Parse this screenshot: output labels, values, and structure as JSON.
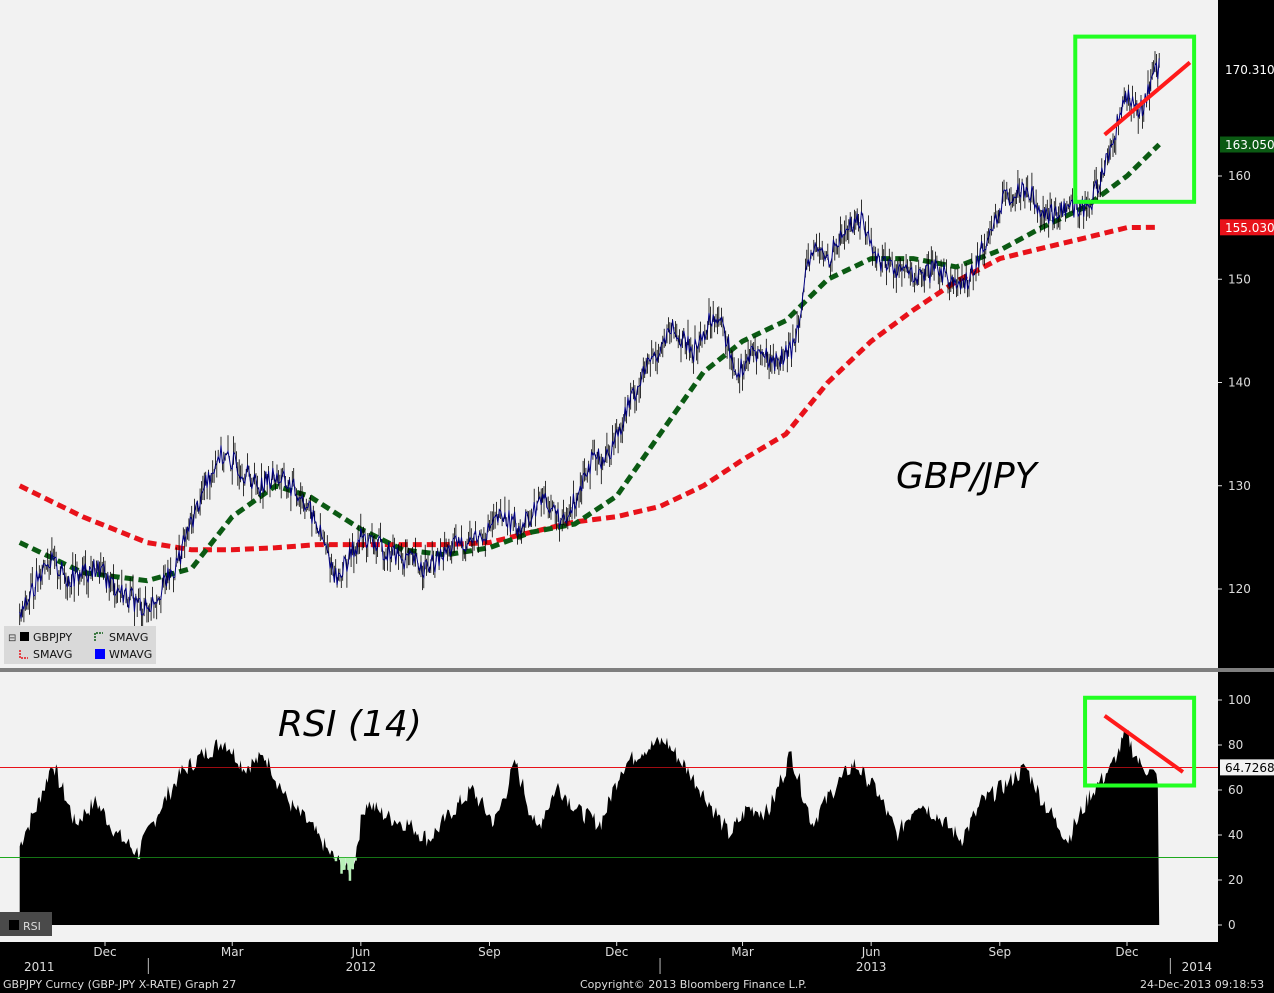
{
  "chart_data": [
    {
      "type": "line",
      "title": "GBP/JPY",
      "ylim": [
        112,
        176
      ],
      "yticks": [
        120,
        130,
        140,
        150,
        160
      ],
      "x_range": [
        "2011-10-01",
        "2013-12-24"
      ],
      "highlight_values": [
        {
          "value": "170.310",
          "value_num": 170.31,
          "color": "#000000",
          "text_color": "#ffffff"
        },
        {
          "value": "163.050",
          "value_num": 163.05,
          "color": "#0b5a13",
          "text_color": "#ffffff"
        },
        {
          "value": "155.030",
          "value_num": 155.03,
          "color": "#e8121a",
          "text_color": "#ffffff"
        }
      ],
      "legend": [
        {
          "label": "GBPJPY",
          "color": "#000000"
        },
        {
          "label": "SMAVG",
          "color": "#0b5a13"
        },
        {
          "label": "SMAVG",
          "color": "#e8121a"
        },
        {
          "label": "WMAVG",
          "color": "#0000ff"
        }
      ],
      "series": [
        {
          "name": "GBPJPY",
          "color": "#000080",
          "style": "solid",
          "x": [
            "2011-10-01",
            "2011-10-20",
            "2011-11-05",
            "2011-11-25",
            "2011-12-10",
            "2011-12-31",
            "2012-01-20",
            "2012-02-05",
            "2012-02-20",
            "2012-03-05",
            "2012-03-20",
            "2012-04-01",
            "2012-04-20",
            "2012-05-01",
            "2012-05-15",
            "2012-06-01",
            "2012-06-15",
            "2012-07-01",
            "2012-07-20",
            "2012-08-05",
            "2012-08-25",
            "2012-09-10",
            "2012-09-25",
            "2012-10-10",
            "2012-10-25",
            "2012-11-10",
            "2012-11-25",
            "2012-12-10",
            "2012-12-25",
            "2013-01-10",
            "2013-01-25",
            "2013-02-10",
            "2013-02-25",
            "2013-03-10",
            "2013-03-25",
            "2013-04-05",
            "2013-04-20",
            "2013-05-01",
            "2013-05-15",
            "2013-05-25",
            "2013-06-05",
            "2013-06-20",
            "2013-07-05",
            "2013-07-20",
            "2013-08-05",
            "2013-08-20",
            "2013-09-05",
            "2013-09-20",
            "2013-10-05",
            "2013-10-20",
            "2013-11-05",
            "2013-11-20",
            "2013-12-01",
            "2013-12-10",
            "2013-12-20",
            "2013-12-24"
          ],
          "values": [
            117,
            123,
            121,
            122,
            120,
            118,
            122,
            128,
            133,
            132,
            130,
            131,
            129,
            126,
            121,
            125,
            124,
            123,
            122,
            124,
            125,
            127,
            126,
            129,
            126,
            132,
            133,
            138,
            142,
            145,
            143,
            147,
            141,
            143,
            142,
            143,
            153,
            152,
            155,
            156,
            152,
            151,
            150,
            151,
            149,
            153,
            158,
            159,
            156,
            157,
            157,
            163,
            168,
            166,
            170,
            170.31
          ]
        },
        {
          "name": "SMAVG",
          "color": "#0b5a13",
          "style": "dashed",
          "x": [
            "2011-10-01",
            "2011-11-15",
            "2011-12-31",
            "2012-02-01",
            "2012-03-01",
            "2012-04-01",
            "2012-04-25",
            "2012-06-01",
            "2012-07-01",
            "2012-08-01",
            "2012-09-01",
            "2012-10-01",
            "2012-11-01",
            "2012-12-01",
            "2013-01-01",
            "2013-02-01",
            "2013-03-01",
            "2013-04-01",
            "2013-05-01",
            "2013-06-01",
            "2013-07-01",
            "2013-08-01",
            "2013-09-01",
            "2013-10-01",
            "2013-11-01",
            "2013-12-01",
            "2013-12-24"
          ],
          "values": [
            124.5,
            121.6,
            120.8,
            122.0,
            127.0,
            130.0,
            129.0,
            125.8,
            123.8,
            123.3,
            124.0,
            125.5,
            126.3,
            129.0,
            135.0,
            141.0,
            144.0,
            146.0,
            150.0,
            152.0,
            152.0,
            151.2,
            152.8,
            155.0,
            157.0,
            160.0,
            163.05
          ]
        },
        {
          "name": "SMAVG",
          "color": "#e8121a",
          "style": "dashed",
          "x": [
            "2011-10-01",
            "2011-11-15",
            "2011-12-31",
            "2012-02-01",
            "2012-03-01",
            "2012-04-01",
            "2012-05-01",
            "2012-06-01",
            "2012-07-01",
            "2012-08-01",
            "2012-09-01",
            "2012-10-01",
            "2012-11-01",
            "2012-12-01",
            "2013-01-01",
            "2013-02-01",
            "2013-03-01",
            "2013-04-01",
            "2013-05-01",
            "2013-06-01",
            "2013-07-01",
            "2013-08-01",
            "2013-09-01",
            "2013-10-01",
            "2013-11-01",
            "2013-12-01",
            "2013-12-24"
          ],
          "values": [
            130.0,
            127.0,
            124.5,
            123.8,
            123.8,
            124.0,
            124.3,
            124.3,
            124.3,
            124.3,
            124.5,
            125.5,
            126.5,
            127.0,
            128.0,
            130.0,
            132.5,
            135.0,
            140.0,
            144.0,
            147.0,
            149.8,
            152.0,
            153.0,
            154.0,
            155.0,
            155.03
          ]
        }
      ],
      "annotations": [
        {
          "type": "box",
          "x": [
            "2013-10-25",
            "2014-01-18"
          ],
          "y": [
            157.5,
            173.5
          ],
          "color": "#22ff22"
        },
        {
          "type": "trendline",
          "x": [
            "2013-11-15",
            "2014-01-15"
          ],
          "y": [
            164.0,
            171.0
          ],
          "color": "#ff1a1a"
        }
      ]
    },
    {
      "type": "area",
      "title": "RSI (14)",
      "ylim": [
        -5,
        105
      ],
      "yticks": [
        0,
        20,
        40,
        60,
        80,
        100
      ],
      "ylines": [
        {
          "value": 70,
          "color": "#e8121a"
        },
        {
          "value": 30,
          "color": "#1faa1f"
        }
      ],
      "current_value": "64.7268",
      "legend": [
        {
          "label": "RSI",
          "color": "#000000"
        }
      ],
      "series": [
        {
          "name": "RSI",
          "color": "#000000",
          "x": [
            "2011-10-01",
            "2011-10-15",
            "2011-10-25",
            "2011-11-10",
            "2011-11-25",
            "2011-12-10",
            "2011-12-25",
            "2012-01-10",
            "2012-01-25",
            "2012-02-10",
            "2012-02-25",
            "2012-03-10",
            "2012-03-25",
            "2012-04-10",
            "2012-04-25",
            "2012-05-10",
            "2012-05-25",
            "2012-06-05",
            "2012-06-20",
            "2012-07-05",
            "2012-07-20",
            "2012-08-05",
            "2012-08-20",
            "2012-09-05",
            "2012-09-20",
            "2012-10-05",
            "2012-10-20",
            "2012-11-05",
            "2012-11-20",
            "2012-12-05",
            "2012-12-20",
            "2013-01-05",
            "2013-01-20",
            "2013-02-05",
            "2013-02-20",
            "2013-03-05",
            "2013-03-20",
            "2013-04-05",
            "2013-04-20",
            "2013-05-05",
            "2013-05-20",
            "2013-06-05",
            "2013-06-20",
            "2013-07-05",
            "2013-07-20",
            "2013-08-05",
            "2013-08-20",
            "2013-09-05",
            "2013-09-20",
            "2013-10-05",
            "2013-10-20",
            "2013-11-05",
            "2013-11-20",
            "2013-12-01",
            "2013-12-10",
            "2013-12-24"
          ],
          "values": [
            35,
            55,
            72,
            45,
            55,
            40,
            32,
            52,
            68,
            76,
            82,
            70,
            75,
            55,
            45,
            32,
            22,
            55,
            48,
            45,
            38,
            50,
            60,
            45,
            72,
            42,
            62,
            50,
            45,
            70,
            78,
            82,
            70,
            55,
            40,
            52,
            50,
            76,
            45,
            60,
            72,
            60,
            40,
            55,
            48,
            38,
            55,
            62,
            70,
            52,
            38,
            58,
            70,
            85,
            72,
            65
          ]
        }
      ],
      "annotations": [
        {
          "type": "box",
          "x": [
            "2013-11-01",
            "2014-01-18"
          ],
          "y": [
            62,
            101
          ],
          "color": "#22ff22"
        },
        {
          "type": "trendline",
          "x": [
            "2013-11-15",
            "2014-01-10"
          ],
          "y": [
            93,
            68
          ],
          "color": "#ff1a1a"
        }
      ]
    }
  ],
  "x_axis": {
    "months": [
      {
        "label": "Dec",
        "date": "2011-12-01"
      },
      {
        "label": "Mar",
        "date": "2012-03-01"
      },
      {
        "label": "Jun",
        "date": "2012-06-01"
      },
      {
        "label": "Sep",
        "date": "2012-09-01"
      },
      {
        "label": "Dec",
        "date": "2012-12-01"
      },
      {
        "label": "Mar",
        "date": "2013-03-01"
      },
      {
        "label": "Jun",
        "date": "2013-06-01"
      },
      {
        "label": "Sep",
        "date": "2013-09-01"
      },
      {
        "label": "Dec",
        "date": "2013-12-01"
      }
    ],
    "years": [
      {
        "label": "2011",
        "date": "2011-10-15"
      },
      {
        "label": "2012",
        "date": "2012-06-01"
      },
      {
        "label": "2013",
        "date": "2013-06-01"
      },
      {
        "label": "2014",
        "date": "2014-01-20"
      }
    ]
  },
  "footer": {
    "left": "GBPJPY Curncy (GBP-JPY X-RATE) Graph 27",
    "center": "Copyright© 2013 Bloomberg Finance L.P.",
    "right": "24-Dec-2013 09:18:53"
  }
}
